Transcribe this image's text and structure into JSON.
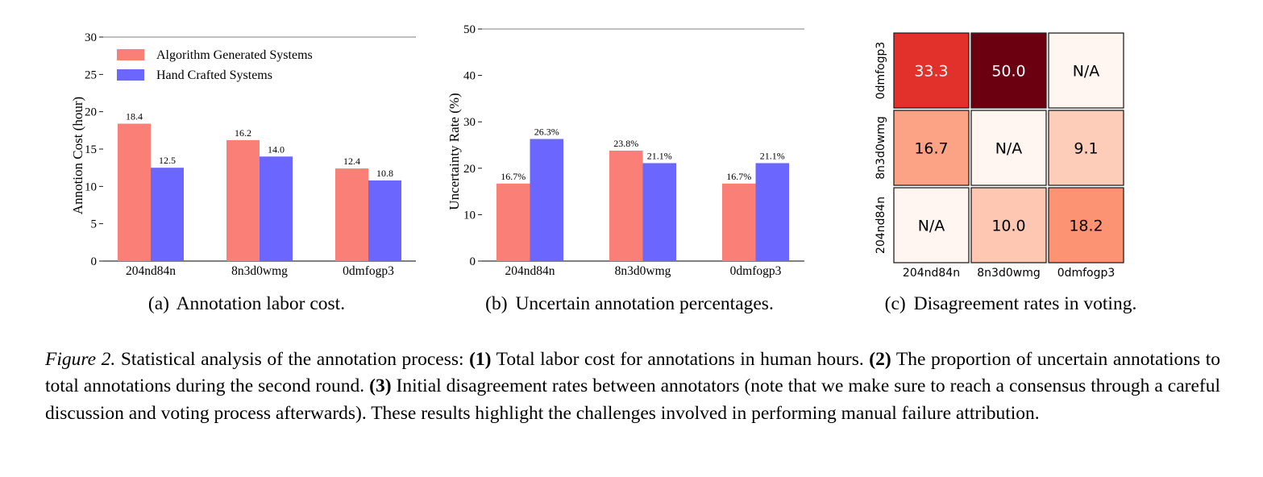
{
  "chart_data": [
    {
      "type": "bar",
      "caption_tag": "(a)",
      "caption": "Annotation labor cost.",
      "ylabel": "Annotion Cost (hour)",
      "ylim": [
        0,
        30
      ],
      "yticks": [
        0,
        5,
        10,
        15,
        20,
        25,
        30
      ],
      "categories": [
        "204nd84n",
        "8n3d0wmg",
        "0dmfogp3"
      ],
      "legend_position": "upper-left",
      "series": [
        {
          "name": "Algorithm Generated Systems",
          "color": "#fa7f76",
          "values": [
            18.4,
            16.2,
            12.4
          ],
          "labels": [
            "18.4",
            "16.2",
            "12.4"
          ]
        },
        {
          "name": "Hand Crafted Systems",
          "color": "#6b66fd",
          "values": [
            12.5,
            14.0,
            10.8
          ],
          "labels": [
            "12.5",
            "14.0",
            "10.8"
          ]
        }
      ]
    },
    {
      "type": "bar",
      "caption_tag": "(b)",
      "caption": "Uncertain annotation percentages.",
      "ylabel": "Uncertainty Rate (%)",
      "ylim": [
        0,
        50
      ],
      "yticks": [
        0,
        10,
        20,
        30,
        40,
        50
      ],
      "categories": [
        "204nd84n",
        "8n3d0wmg",
        "0dmfogp3"
      ],
      "series": [
        {
          "color": "#fa7f76",
          "values": [
            16.7,
            23.8,
            16.7
          ],
          "labels": [
            "16.7%",
            "23.8%",
            "16.7%"
          ]
        },
        {
          "color": "#6b66fd",
          "values": [
            26.3,
            21.1,
            21.1
          ],
          "labels": [
            "26.3%",
            "21.1%",
            "21.1%"
          ]
        }
      ]
    },
    {
      "type": "heatmap",
      "caption_tag": "(c)",
      "caption": "Disagreement rates in voting.",
      "x_labels": [
        "204nd84n",
        "8n3d0wmg",
        "0dmfogp3"
      ],
      "y_labels": [
        "0dmfogp3",
        "8n3d0wmg",
        "204nd84n"
      ],
      "cells": [
        [
          {
            "label": "33.3",
            "value": 33.3,
            "color": "#e2302a"
          },
          {
            "label": "50.0",
            "value": 50.0,
            "color": "#6a0010"
          },
          {
            "label": "N/A",
            "value": null,
            "color": "#fff5f1"
          }
        ],
        [
          {
            "label": "16.7",
            "value": 16.7,
            "color": "#fca285"
          },
          {
            "label": "N/A",
            "value": null,
            "color": "#fff5f1"
          },
          {
            "label": "9.1",
            "value": 9.1,
            "color": "#fdcdb9"
          }
        ],
        [
          {
            "label": "N/A",
            "value": null,
            "color": "#fff5f1"
          },
          {
            "label": "10.0",
            "value": 10.0,
            "color": "#fdc7b1"
          },
          {
            "label": "18.2",
            "value": 18.2,
            "color": "#fc9474"
          }
        ]
      ]
    }
  ],
  "figure_caption": {
    "label": "Figure 2.",
    "intro": "Statistical analysis of the annotation process:",
    "p1_num": "(1)",
    "p1": "Total labor cost for annotations in human hours.",
    "p2_num": "(2)",
    "p2": "The proportion of uncertain annotations to total annotations during the second round.",
    "p3_num": "(3)",
    "p3": "Initial disagreement rates between annotators (note that we make sure to reach a consensus through a careful discussion and voting process afterwards). These results highlight the challenges involved in performing manual failure attribution."
  }
}
